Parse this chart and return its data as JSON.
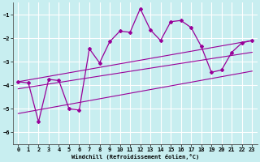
{
  "xlabel": "Windchill (Refroidissement éolien,°C)",
  "background_color": "#c8eef0",
  "grid_color": "#ffffff",
  "line_color": "#990099",
  "xlim": [
    -0.5,
    23.5
  ],
  "ylim": [
    -6.5,
    -0.5
  ],
  "yticks": [
    -6,
    -5,
    -4,
    -3,
    -2,
    -1
  ],
  "xticks": [
    0,
    1,
    2,
    3,
    4,
    5,
    6,
    7,
    8,
    9,
    10,
    11,
    12,
    13,
    14,
    15,
    16,
    17,
    18,
    19,
    20,
    21,
    22,
    23
  ],
  "main_x": [
    0,
    1,
    2,
    3,
    4,
    5,
    6,
    7,
    8,
    9,
    10,
    11,
    12,
    13,
    14,
    15,
    16,
    17,
    18,
    19,
    20,
    21,
    22,
    23
  ],
  "main_y": [
    -3.85,
    -3.9,
    -5.55,
    -3.75,
    -3.8,
    -5.0,
    -5.05,
    -2.45,
    -3.05,
    -2.15,
    -1.7,
    -1.75,
    -0.75,
    -1.65,
    -2.1,
    -1.3,
    -1.25,
    -1.55,
    -2.35,
    -3.45,
    -3.35,
    -2.6,
    -2.2,
    -2.1
  ],
  "line1_x": [
    0,
    23
  ],
  "line1_y": [
    -3.85,
    -2.1
  ],
  "line2_x": [
    0,
    23
  ],
  "line2_y": [
    -4.15,
    -2.6
  ],
  "line3_x": [
    0,
    23
  ],
  "line3_y": [
    -5.2,
    -3.4
  ]
}
